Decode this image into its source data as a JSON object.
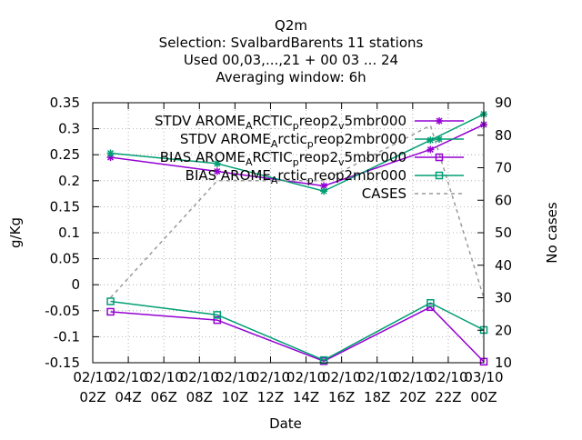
{
  "chart_data": {
    "type": "line",
    "title_lines": [
      "Q2m",
      "Selection: SvalbardBarents      11 stations",
      "Used  00,03,...,21  + 00 03 ... 24",
      "Averaging window:  6h"
    ],
    "xlabel": "Date",
    "ylabel": "g/Kg",
    "y2label": "No cases",
    "ylim": [
      -0.15,
      0.35
    ],
    "y2lim": [
      10,
      90
    ],
    "yticks": [
      "0.35",
      "0.3",
      "0.25",
      "0.2",
      "0.15",
      "0.1",
      "0.05",
      "0",
      "-0.05",
      "-0.1",
      "-0.15"
    ],
    "y2ticks": [
      "90",
      "80",
      "70",
      "60",
      "50",
      "40",
      "30",
      "20",
      "10"
    ],
    "xticks": [
      {
        "top": "02/10",
        "bottom": "02Z"
      },
      {
        "top": "02/10",
        "bottom": "04Z"
      },
      {
        "top": "02/10",
        "bottom": "06Z"
      },
      {
        "top": "02/10",
        "bottom": "08Z"
      },
      {
        "top": "02/10",
        "bottom": "10Z"
      },
      {
        "top": "02/10",
        "bottom": "12Z"
      },
      {
        "top": "02/10",
        "bottom": "14Z"
      },
      {
        "top": "02/10",
        "bottom": "16Z"
      },
      {
        "top": "02/10",
        "bottom": "18Z"
      },
      {
        "top": "02/10",
        "bottom": "20Z"
      },
      {
        "top": "02/10",
        "bottom": "22Z"
      },
      {
        "top": "03/10",
        "bottom": "00Z"
      }
    ],
    "xlim_hours": [
      2,
      24
    ],
    "grid": true,
    "legend_position": "top-right",
    "series": [
      {
        "name": "STDV AROME_ARCTIC_preop2_v5mbr000",
        "legend_parts": [
          [
            "STDV AROME",
            ""
          ],
          [
            "A",
            "sub"
          ],
          [
            "RCTIC",
            ""
          ],
          [
            "p",
            "sub"
          ],
          [
            "reop2",
            ""
          ],
          [
            "v",
            "sub"
          ],
          [
            "5mbr000",
            ""
          ]
        ],
        "color": "#9400d3",
        "marker": "star",
        "axis": "y",
        "x_hours": [
          3,
          9,
          15,
          21,
          24
        ],
        "values": [
          0.245,
          0.218,
          0.19,
          0.26,
          0.308
        ]
      },
      {
        "name": "STDV AROME_Arctic_preop2mbr000",
        "legend_parts": [
          [
            "STDV AROME",
            ""
          ],
          [
            "A",
            "sub"
          ],
          [
            "rctic",
            ""
          ],
          [
            "p",
            "sub"
          ],
          [
            "reop2mbr000",
            ""
          ]
        ],
        "color": "#009e73",
        "marker": "star",
        "axis": "y",
        "x_hours": [
          3,
          9,
          15,
          21,
          24
        ],
        "values": [
          0.253,
          0.233,
          0.18,
          0.278,
          0.328
        ]
      },
      {
        "name": "BIAS AROME_ARCTIC_preop2_v5mbr000",
        "legend_parts": [
          [
            "BIAS AROME",
            ""
          ],
          [
            "A",
            "sub"
          ],
          [
            "RCTIC",
            ""
          ],
          [
            "p",
            "sub"
          ],
          [
            "reop2",
            ""
          ],
          [
            "v",
            "sub"
          ],
          [
            "5mbr000",
            ""
          ]
        ],
        "color": "#9400d3",
        "marker": "square",
        "axis": "y",
        "x_hours": [
          3,
          9,
          15,
          21,
          24
        ],
        "values": [
          -0.052,
          -0.068,
          -0.147,
          -0.043,
          -0.148
        ]
      },
      {
        "name": "BIAS AROME_Arctic_preop2mbr000",
        "legend_parts": [
          [
            "BIAS AROME",
            ""
          ],
          [
            "A",
            "sub"
          ],
          [
            "rctic",
            ""
          ],
          [
            "p",
            "sub"
          ],
          [
            "reop2mbr000",
            ""
          ]
        ],
        "color": "#009e73",
        "marker": "square",
        "axis": "y",
        "x_hours": [
          3,
          9,
          15,
          21,
          24
        ],
        "values": [
          -0.032,
          -0.058,
          -0.145,
          -0.035,
          -0.087
        ]
      },
      {
        "name": "CASES",
        "legend_parts": [
          [
            "CASES",
            ""
          ]
        ],
        "color": "#999999",
        "marker": "none",
        "dashed": true,
        "axis": "y2",
        "x_hours": [
          3,
          9,
          15,
          21,
          24
        ],
        "values": [
          30,
          66,
          66,
          83,
          30
        ]
      }
    ]
  }
}
